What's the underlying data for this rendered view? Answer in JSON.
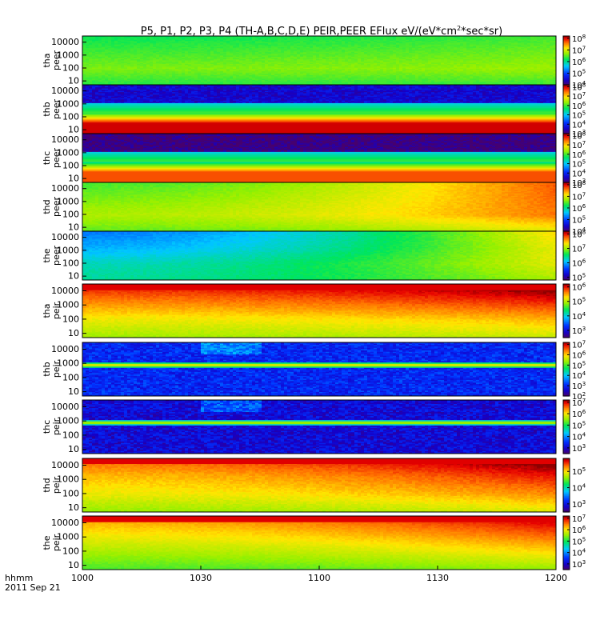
{
  "chart_data": {
    "type": "heatmap",
    "title": "P5, P1, P2, P3, P4 (TH-A,B,C,D,E) PEIR,PEER EFlux eV/(eV*cm2*sec*sr)",
    "title_parts": {
      "main": "P5, P1, P2, P3, P4 (TH-A,B,C,D,E) PEIR,PEER EFlux eV/(eV*cm",
      "sup": "2",
      "tail": "*sec*sr)"
    },
    "xaxis": {
      "ticks": [
        1000,
        1030,
        1100,
        1130,
        1200
      ],
      "tick_labels": [
        "1000",
        "1030",
        "1100",
        "1130",
        "1200"
      ],
      "range_hhmm": [
        1000,
        1200
      ],
      "label_lines": [
        "hhmm",
        "2011 Sep 21"
      ]
    },
    "yaxis": {
      "scale": "log",
      "ticks": [
        10,
        100,
        1000,
        10000
      ],
      "tick_labels": [
        "10",
        "100",
        "1000",
        "10000"
      ],
      "range": [
        5,
        30000
      ]
    },
    "colormap": "rainbow (purple-blue-cyan-green-yellow-red)",
    "panels": [
      {
        "probe": "tha",
        "species": "peer",
        "label_lines": [
          "tha",
          "peer"
        ],
        "colorbar_exponents": [
          4,
          5,
          6,
          7,
          8
        ],
        "colorbar_range_log": [
          4,
          8.2
        ],
        "pattern": "smooth",
        "level": [
          6.3,
          6.6,
          6.4,
          6.2
        ],
        "time_gain": 0.2,
        "bands": []
      },
      {
        "probe": "thb",
        "species": "peer",
        "label_lines": [
          "thb",
          "peer"
        ],
        "colorbar_exponents": [
          3,
          4,
          5,
          6,
          7,
          8
        ],
        "colorbar_range_log": [
          3,
          8.2
        ],
        "pattern": "banded",
        "level": [
          3.6,
          3.4,
          6.0,
          8.0
        ],
        "time_gain": 0,
        "bands": []
      },
      {
        "probe": "thc",
        "species": "peer",
        "label_lines": [
          "thc",
          "peer"
        ],
        "colorbar_exponents": [
          3,
          4,
          5,
          6,
          7,
          8
        ],
        "colorbar_range_log": [
          3,
          8.2
        ],
        "pattern": "banded",
        "level": [
          3.1,
          3.0,
          6.0,
          7.6
        ],
        "time_gain": 0,
        "bands": []
      },
      {
        "probe": "thd",
        "species": "peer",
        "label_lines": [
          "thd",
          "peer"
        ],
        "colorbar_exponents": [
          4,
          5,
          6,
          7,
          8
        ],
        "colorbar_range_log": [
          4,
          8.2
        ],
        "pattern": "smooth",
        "level": [
          6.5,
          6.8,
          6.6,
          6.4
        ],
        "time_gain": 1.3,
        "bands": []
      },
      {
        "probe": "the",
        "species": "peer",
        "label_lines": [
          "the",
          "peer"
        ],
        "colorbar_exponents": [
          5,
          6,
          7,
          8
        ],
        "colorbar_range_log": [
          4.8,
          8.2
        ],
        "pattern": "smooth",
        "level": [
          6.4,
          6.3,
          6.0,
          5.8
        ],
        "time_gain": 1.6,
        "bands": []
      },
      {
        "probe": "tha",
        "species": "peir",
        "label_lines": [
          "tha",
          "peir"
        ],
        "colorbar_exponents": [
          3,
          4,
          5,
          6
        ],
        "colorbar_range_log": [
          2.5,
          6.2
        ],
        "pattern": "smooth",
        "level": [
          4.9,
          5.2,
          5.6,
          6.0
        ],
        "time_gain": 0.4,
        "bands": [
          [
            11000,
            30000
          ]
        ]
      },
      {
        "probe": "thb",
        "species": "peir",
        "label_lines": [
          "thb",
          "peir"
        ],
        "colorbar_exponents": [
          2,
          3,
          4,
          5,
          6,
          7
        ],
        "colorbar_range_log": [
          2,
          7.2
        ],
        "pattern": "banded",
        "level": [
          3.0,
          3.1,
          5.6,
          3.0
        ],
        "time_gain": 0,
        "bands": []
      },
      {
        "probe": "thc",
        "species": "peir",
        "label_lines": [
          "thc",
          "peir"
        ],
        "colorbar_exponents": [
          3,
          4,
          5,
          6,
          7
        ],
        "colorbar_range_log": [
          2.5,
          7.2
        ],
        "pattern": "banded",
        "level": [
          3.1,
          3.2,
          5.5,
          3.0
        ],
        "time_gain": 0,
        "bands": []
      },
      {
        "probe": "thd",
        "species": "peir",
        "label_lines": [
          "thd",
          "peir"
        ],
        "colorbar_exponents": [
          3,
          4,
          5
        ],
        "colorbar_range_log": [
          2.5,
          5.8
        ],
        "pattern": "smooth",
        "level": [
          4.6,
          4.9,
          5.1,
          5.4
        ],
        "time_gain": 0.6,
        "bands": [
          [
            12000,
            30000
          ]
        ]
      },
      {
        "probe": "the",
        "species": "peir",
        "label_lines": [
          "the",
          "peir"
        ],
        "colorbar_exponents": [
          3,
          4,
          5,
          6,
          7
        ],
        "colorbar_range_log": [
          2.5,
          7.2
        ],
        "pattern": "smooth",
        "level": [
          5.2,
          5.6,
          6.0,
          6.4
        ],
        "time_gain": 0.8,
        "bands": [
          [
            11000,
            30000
          ]
        ]
      }
    ]
  }
}
